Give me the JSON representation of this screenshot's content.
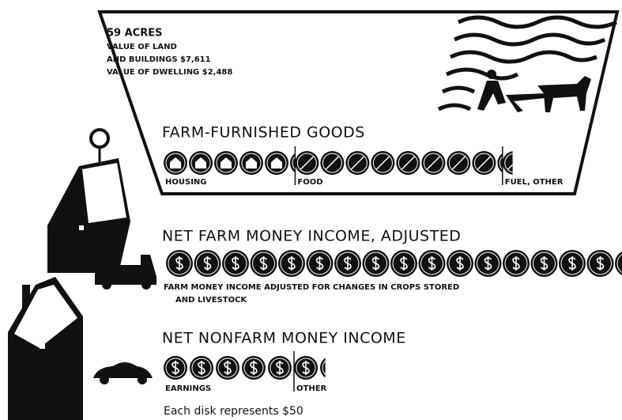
{
  "farm": {
    "lines": [
      "59 ACRES",
      "VALUE OF LAND",
      "AND BUILDINGS $7,611",
      "VALUE OF DWELLING $2,488"
    ]
  },
  "farm_goods": {
    "title": "FARM-FURNISHED GOODS",
    "segments": [
      {
        "label": "HOUSING",
        "disks": 5.2
      },
      {
        "label": "FOOD",
        "disks": 8.2
      },
      {
        "label": "FUEL, OTHER",
        "disks": 0.4
      }
    ]
  },
  "farm_income": {
    "title": "NET FARM MONEY INCOME, ADJUSTED",
    "segments": [
      {
        "disks": 16.3
      }
    ],
    "note": [
      "FARM MONEY INCOME ADJUSTED FOR CHANGES IN CROPS STORED",
      "AND LIVESTOCK"
    ]
  },
  "nonfarm_income": {
    "title": "NET NONFARM MONEY INCOME",
    "segments": [
      {
        "label": "EARNINGS",
        "disks": 5.0
      },
      {
        "label": "OTHER",
        "disks": 1.2
      }
    ]
  },
  "footnote": "Each disk represents $50"
}
